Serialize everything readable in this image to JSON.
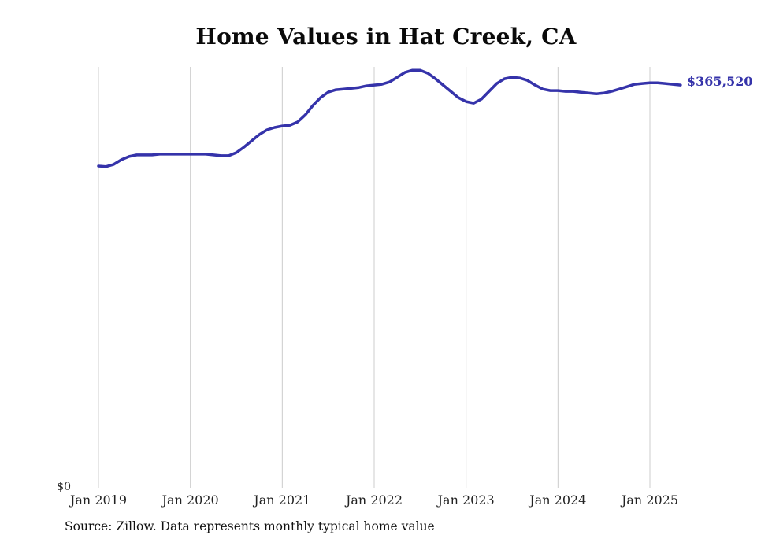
{
  "chart_data": {
    "type": "line",
    "title": "Home Values in Hat Creek, CA",
    "x_start": "2019-01",
    "x_end": "2025-05",
    "x_tick_labels": [
      "Jan 2019",
      "Jan 2020",
      "Jan 2021",
      "Jan 2022",
      "Jan 2023",
      "Jan 2024",
      "Jan 2025"
    ],
    "ylim": [
      0,
      382000
    ],
    "y_zero_label": "$0",
    "grid": "vertical-only",
    "legend": "none",
    "latest_value": 365520,
    "latest_value_label": "$365,520",
    "series_name": "Typical home value (monthly)",
    "values": [
      292000,
      291500,
      293500,
      297800,
      300700,
      302100,
      302100,
      302100,
      302800,
      302800,
      302800,
      302800,
      302800,
      302800,
      302800,
      302100,
      301400,
      301400,
      304200,
      309200,
      314900,
      320600,
      324900,
      327000,
      328400,
      329100,
      332000,
      338400,
      347000,
      354100,
      359100,
      361200,
      361900,
      362600,
      363300,
      364800,
      365500,
      366200,
      368300,
      372600,
      376900,
      379000,
      379000,
      376200,
      371200,
      365500,
      359800,
      354100,
      350500,
      349100,
      352700,
      359800,
      366900,
      371200,
      372600,
      371900,
      369800,
      365500,
      361900,
      360500,
      360500,
      359800,
      359800,
      359000,
      358300,
      357600,
      358300,
      359800,
      361900,
      364000,
      366200,
      366900,
      367600,
      367600,
      366900,
      366200,
      365520
    ],
    "colors": {
      "line": "#3533aa",
      "grid": "#cccccc",
      "end_label": "#3533aa"
    },
    "source": "Source: Zillow. Data represents monthly typical home value"
  }
}
